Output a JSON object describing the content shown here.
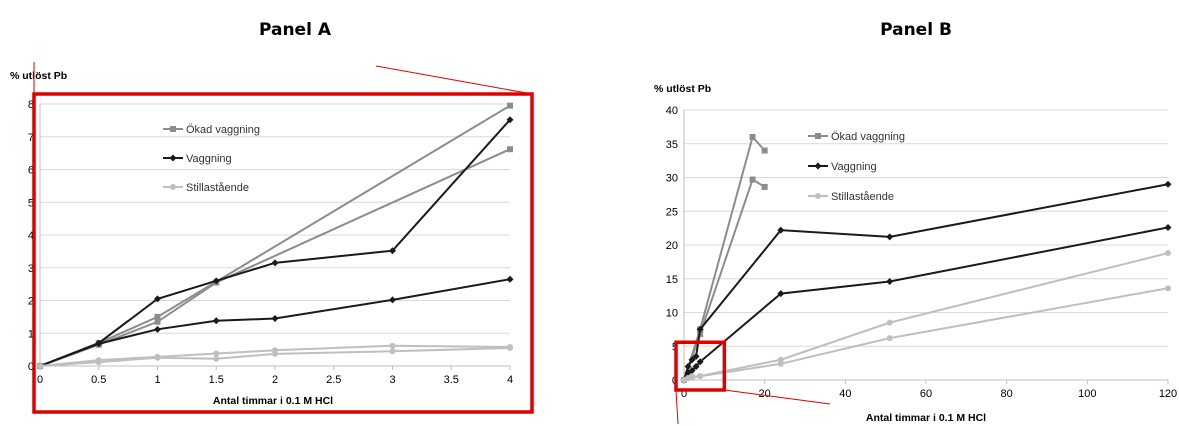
{
  "panels": [
    {
      "title": "Panel A",
      "ylabel": "% utlöst Pb",
      "xlabel": "Antal timmar i 0.1 M HCl",
      "chart_data": {
        "type": "line",
        "xlim": [
          0,
          4
        ],
        "ylim": [
          0,
          8
        ],
        "xticks": [
          "0",
          "0.5",
          "1",
          "1.5",
          "2",
          "2.5",
          "3",
          "3.5",
          "4"
        ],
        "yticks": [
          "0",
          "1",
          "2",
          "3",
          "4",
          "5",
          "6",
          "7",
          "8"
        ],
        "grid": "horizontal",
        "legend_position": "top-left",
        "series": [
          {
            "name": "Ökad vaggning",
            "color": "#8c8c8c",
            "marker": "square",
            "x": [
              0,
              0.5,
              1,
              4
            ],
            "y": [
              0,
              0.7,
              1.5,
              7.95
            ],
            "show_in_legend": true
          },
          {
            "name": "",
            "color": "#8c8c8c",
            "marker": "square",
            "x": [
              0,
              0.5,
              1,
              1.5,
              4
            ],
            "y": [
              0,
              0.65,
              1.35,
              2.55,
              6.62
            ],
            "show_in_legend": false
          },
          {
            "name": "Vaggning",
            "color": "#1a1a1a",
            "marker": "diamond",
            "x": [
              0,
              0.5,
              1,
              1.5,
              2,
              3,
              4
            ],
            "y": [
              0,
              0.7,
              2.05,
              2.6,
              3.15,
              3.52,
              7.52
            ],
            "show_in_legend": true
          },
          {
            "name": "",
            "color": "#1a1a1a",
            "marker": "diamond",
            "x": [
              0,
              0.5,
              1,
              1.5,
              2,
              3,
              4
            ],
            "y": [
              0,
              0.68,
              1.12,
              1.38,
              1.45,
              2.02,
              2.65
            ],
            "show_in_legend": false
          },
          {
            "name": "Stillastående",
            "color": "#bfbfbf",
            "marker": "circle",
            "x": [
              0,
              0.5,
              1,
              1.5,
              2,
              3,
              4
            ],
            "y": [
              0,
              0.18,
              0.28,
              0.38,
              0.48,
              0.62,
              0.58
            ],
            "show_in_legend": true
          },
          {
            "name": "",
            "color": "#bfbfbf",
            "marker": "circle",
            "x": [
              0,
              0.5,
              1,
              1.5,
              2,
              3,
              4
            ],
            "y": [
              0,
              0.12,
              0.25,
              0.22,
              0.37,
              0.45,
              0.55
            ],
            "show_in_legend": false
          }
        ]
      }
    },
    {
      "title": "Panel B",
      "ylabel": "% utlöst Pb",
      "xlabel": "Antal timmar i 0.1 M HCl",
      "chart_data": {
        "type": "line",
        "xlim": [
          0,
          120
        ],
        "ylim": [
          0,
          40
        ],
        "xticks": [
          "0",
          "20",
          "40",
          "60",
          "80",
          "100",
          "120"
        ],
        "yticks": [
          "0",
          "5",
          "10",
          "15",
          "20",
          "25",
          "30",
          "35",
          "40"
        ],
        "grid": "horizontal",
        "legend_position": "top-center",
        "series": [
          {
            "name": "Ökad vaggning",
            "color": "#8c8c8c",
            "marker": "square",
            "x": [
              0,
              4,
              17,
              20
            ],
            "y": [
              0,
              7.5,
              36,
              34
            ],
            "show_in_legend": true
          },
          {
            "name": "",
            "color": "#8c8c8c",
            "marker": "square",
            "x": [
              0,
              4,
              17,
              20
            ],
            "y": [
              0,
              6.8,
              29.7,
              28.6
            ],
            "show_in_legend": false
          },
          {
            "name": "Vaggning",
            "color": "#1a1a1a",
            "marker": "diamond",
            "x": [
              0,
              1,
              2,
              3,
              4,
              24,
              51,
              120
            ],
            "y": [
              0,
              2,
              3,
              3.5,
              7.5,
              22.2,
              21.2,
              29
            ],
            "show_in_legend": true
          },
          {
            "name": "",
            "color": "#1a1a1a",
            "marker": "diamond",
            "x": [
              0,
              1,
              2,
              3,
              4,
              24,
              51,
              120
            ],
            "y": [
              0,
              1.1,
              1.4,
              2.0,
              2.7,
              12.8,
              14.6,
              22.6
            ],
            "show_in_legend": false
          },
          {
            "name": "Stillastående",
            "color": "#bfbfbf",
            "marker": "circle",
            "x": [
              0,
              1,
              2,
              4,
              24,
              51,
              120
            ],
            "y": [
              0,
              0.3,
              0.5,
              0.6,
              3,
              8.5,
              18.8
            ],
            "show_in_legend": true
          },
          {
            "name": "",
            "color": "#bfbfbf",
            "marker": "circle",
            "x": [
              0,
              1,
              2,
              4,
              24,
              51,
              120
            ],
            "y": [
              0,
              0.25,
              0.35,
              0.55,
              2.4,
              6.2,
              13.6
            ],
            "show_in_legend": false
          }
        ]
      }
    }
  ],
  "zoom_box": {
    "x": [
      0,
      10
    ],
    "y": [
      0,
      5
    ],
    "color": "#e00000"
  }
}
